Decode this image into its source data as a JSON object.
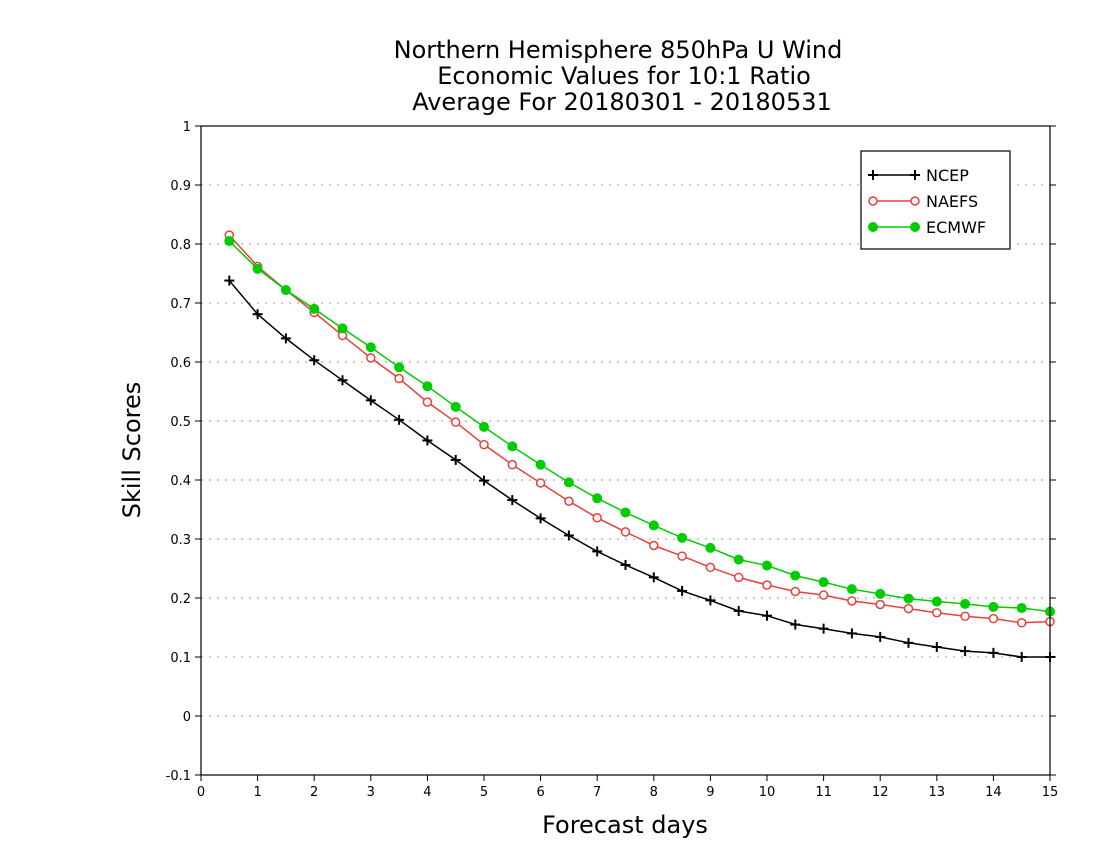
{
  "chart_data": {
    "type": "line",
    "title_lines": [
      "Northern Hemisphere 850hPa U Wind",
      "Economic Values for 10:1 Ratio",
      "Average For 20180301 - 20180531"
    ],
    "xlabel": "Forecast days",
    "ylabel": "Skill Scores",
    "xlim": [
      0,
      15
    ],
    "ylim": [
      -0.1,
      1
    ],
    "xticks": [
      0,
      1,
      2,
      3,
      4,
      5,
      6,
      7,
      8,
      9,
      10,
      11,
      12,
      13,
      14,
      15
    ],
    "yticks": [
      -0.1,
      0,
      0.1,
      0.2,
      0.3,
      0.4,
      0.5,
      0.6,
      0.7,
      0.8,
      0.9,
      1
    ],
    "ytick_labels": [
      "-0.1",
      "0",
      "0.1",
      "0.2",
      "0.3",
      "0.4",
      "0.5",
      "0.6",
      "0.7",
      "0.8",
      "0.9",
      "1"
    ],
    "grid": "horizontal dotted",
    "legend_position": "top-right",
    "x": [
      0.5,
      1,
      1.5,
      2,
      2.5,
      3,
      3.5,
      4,
      4.5,
      5,
      5.5,
      6,
      6.5,
      7,
      7.5,
      8,
      8.5,
      9,
      9.5,
      10,
      10.5,
      11,
      11.5,
      12,
      12.5,
      13,
      13.5,
      14,
      14.5,
      15
    ],
    "series": [
      {
        "name": "NCEP",
        "color": "#000000",
        "marker": "plus",
        "values": [
          0.738,
          0.681,
          0.64,
          0.603,
          0.569,
          0.535,
          0.502,
          0.467,
          0.434,
          0.399,
          0.366,
          0.335,
          0.306,
          0.279,
          0.256,
          0.235,
          0.212,
          0.196,
          0.178,
          0.17,
          0.155,
          0.148,
          0.14,
          0.134,
          0.124,
          0.117,
          0.11,
          0.107,
          0.1,
          0.1
        ]
      },
      {
        "name": "NAEFS",
        "color": "#e8413c",
        "marker": "open-circle",
        "values": [
          0.815,
          0.762,
          0.722,
          0.684,
          0.645,
          0.607,
          0.572,
          0.532,
          0.498,
          0.46,
          0.426,
          0.395,
          0.364,
          0.336,
          0.312,
          0.289,
          0.271,
          0.252,
          0.235,
          0.222,
          0.211,
          0.205,
          0.195,
          0.189,
          0.182,
          0.175,
          0.169,
          0.165,
          0.158,
          0.16
        ]
      },
      {
        "name": "ECMWF",
        "color": "#00cc00",
        "marker": "filled-circle",
        "values": [
          0.805,
          0.758,
          0.722,
          0.69,
          0.657,
          0.625,
          0.591,
          0.559,
          0.524,
          0.49,
          0.457,
          0.426,
          0.396,
          0.369,
          0.345,
          0.323,
          0.302,
          0.285,
          0.265,
          0.255,
          0.238,
          0.227,
          0.215,
          0.207,
          0.199,
          0.194,
          0.19,
          0.185,
          0.183,
          0.177
        ]
      }
    ]
  }
}
